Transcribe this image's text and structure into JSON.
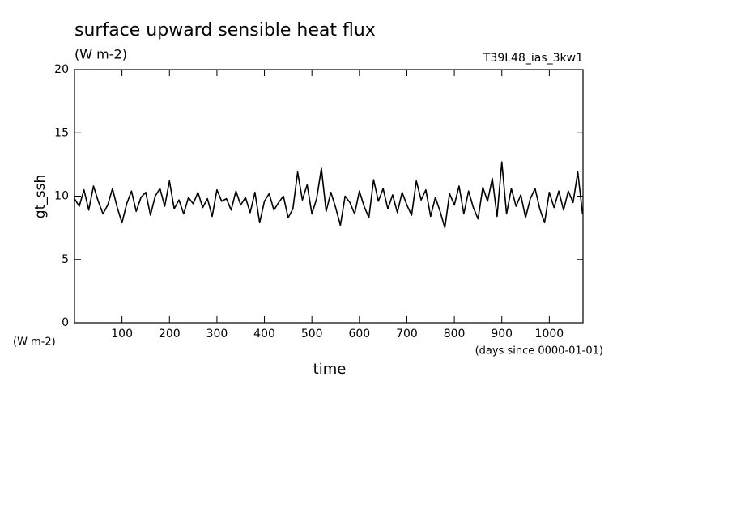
{
  "chart_data": {
    "type": "line",
    "title": "surface upward sensible heat flux",
    "subtitle": "(W m-2)",
    "annotation": "T39L48_ias_3kw1",
    "y_label": "gt_ssh",
    "y_unit": "(W m-2)",
    "x_unit": "(days since 0000-01-01)",
    "x_label": "time",
    "color": "#000000",
    "xlim": [
      0,
      1071
    ],
    "xticks": [
      100,
      200,
      300,
      400,
      500,
      600,
      700,
      800,
      900,
      1000
    ],
    "ylim": [
      0,
      20
    ],
    "yticks": [
      0,
      5,
      10,
      15,
      20
    ],
    "x": [
      0,
      10,
      20,
      30,
      40,
      50,
      60,
      70,
      80,
      90,
      100,
      110,
      120,
      130,
      140,
      150,
      160,
      170,
      180,
      190,
      200,
      210,
      220,
      230,
      240,
      250,
      260,
      270,
      280,
      290,
      300,
      310,
      320,
      330,
      340,
      350,
      360,
      370,
      380,
      390,
      400,
      410,
      420,
      430,
      440,
      450,
      460,
      470,
      480,
      490,
      500,
      510,
      520,
      530,
      540,
      550,
      560,
      570,
      580,
      590,
      600,
      610,
      620,
      630,
      640,
      650,
      660,
      670,
      680,
      690,
      700,
      710,
      720,
      730,
      740,
      750,
      760,
      770,
      780,
      790,
      800,
      810,
      820,
      830,
      840,
      850,
      860,
      870,
      880,
      890,
      900,
      910,
      920,
      930,
      940,
      950,
      960,
      970,
      980,
      990,
      1000,
      1010,
      1020,
      1030,
      1040,
      1050,
      1060,
      1070
    ],
    "values": [
      9.8,
      9.2,
      10.5,
      8.9,
      10.8,
      9.6,
      8.6,
      9.3,
      10.6,
      9.1,
      7.9,
      9.4,
      10.4,
      8.8,
      9.9,
      10.3,
      8.5,
      10.0,
      10.6,
      9.2,
      11.2,
      9.0,
      9.7,
      8.6,
      9.9,
      9.4,
      10.3,
      9.1,
      9.8,
      8.4,
      10.5,
      9.6,
      9.8,
      8.9,
      10.4,
      9.3,
      9.9,
      8.7,
      10.3,
      7.9,
      9.6,
      10.2,
      8.9,
      9.5,
      10.0,
      8.3,
      9.0,
      11.9,
      9.7,
      10.9,
      8.6,
      9.8,
      12.2,
      8.8,
      10.3,
      9.1,
      7.7,
      10.0,
      9.5,
      8.6,
      10.4,
      9.2,
      8.3,
      11.3,
      9.6,
      10.6,
      9.0,
      10.1,
      8.7,
      10.3,
      9.3,
      8.5,
      11.2,
      9.7,
      10.5,
      8.4,
      9.9,
      8.8,
      7.5,
      10.2,
      9.3,
      10.8,
      8.6,
      10.4,
      9.1,
      8.2,
      10.7,
      9.6,
      11.4,
      8.4,
      12.7,
      8.6,
      10.6,
      9.2,
      10.1,
      8.3,
      9.8,
      10.6,
      9.0,
      7.9,
      10.3,
      9.1,
      10.4,
      8.9,
      10.4,
      9.5,
      11.9,
      8.6
    ]
  }
}
